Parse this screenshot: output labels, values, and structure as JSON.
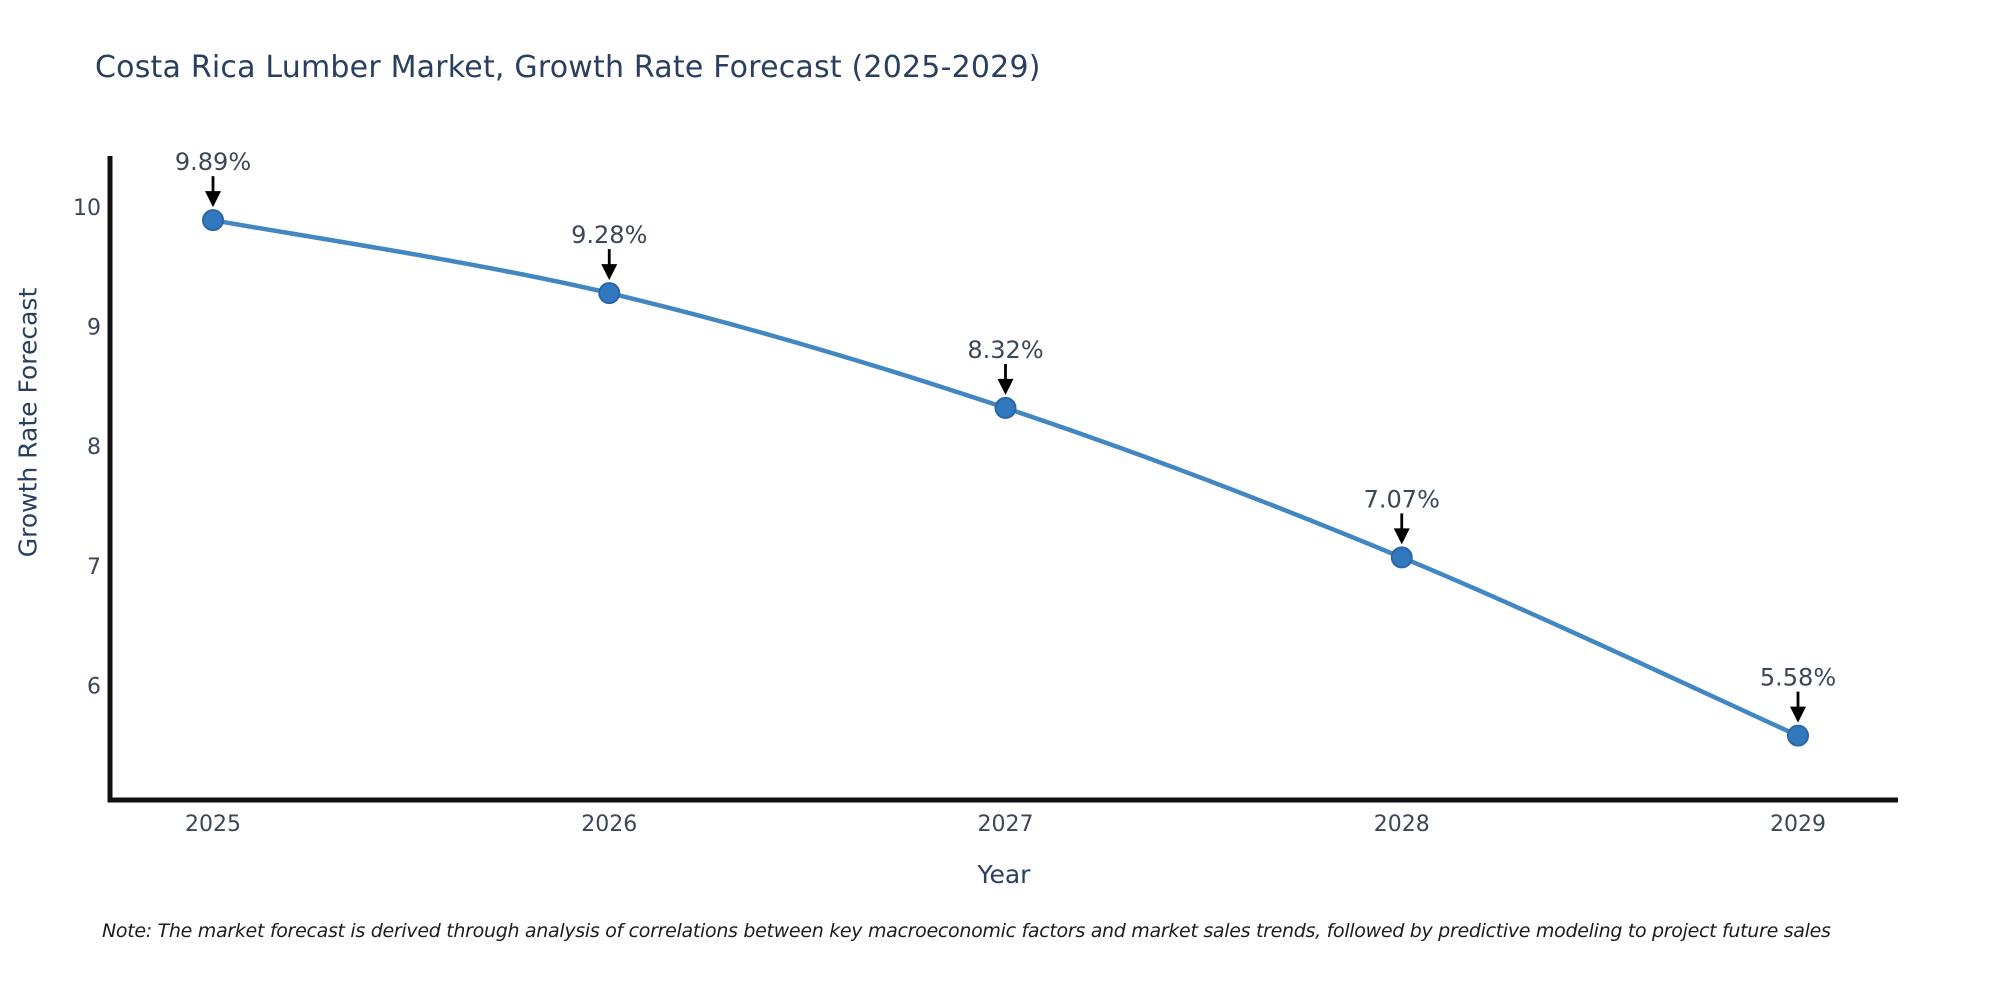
{
  "title": "Costa Rica Lumber Market, Growth Rate Forecast (2025-2029)",
  "note": "Note: The market forecast is derived through analysis of correlations between key macroeconomic factors and market sales trends, followed by predictive modeling to project future sales",
  "chart_data": {
    "type": "line",
    "title": "Costa Rica Lumber Market, Growth Rate Forecast (2025-2029)",
    "xlabel": "Year",
    "ylabel": "Growth Rate Forecast",
    "categories": [
      "2025",
      "2026",
      "2027",
      "2028",
      "2029"
    ],
    "values": [
      9.89,
      9.28,
      8.32,
      7.07,
      5.58
    ],
    "point_labels": [
      "9.89%",
      "9.28%",
      "8.32%",
      "7.07%",
      "5.58%"
    ],
    "yticks": [
      "6",
      "7",
      "8",
      "9",
      "10"
    ],
    "ylim": [
      5.04,
      10.41
    ],
    "xlim": [
      2024.74,
      2029.25
    ],
    "grid": false,
    "legend": null,
    "colors": {
      "line": "#4287c2",
      "marker_fill": "#3178be",
      "marker_edge": "#2a67a5",
      "spine": "#111111",
      "annotation_arrow": "#000000",
      "title_text": "#2a3f5f",
      "tick_text": "#3b4656"
    }
  }
}
